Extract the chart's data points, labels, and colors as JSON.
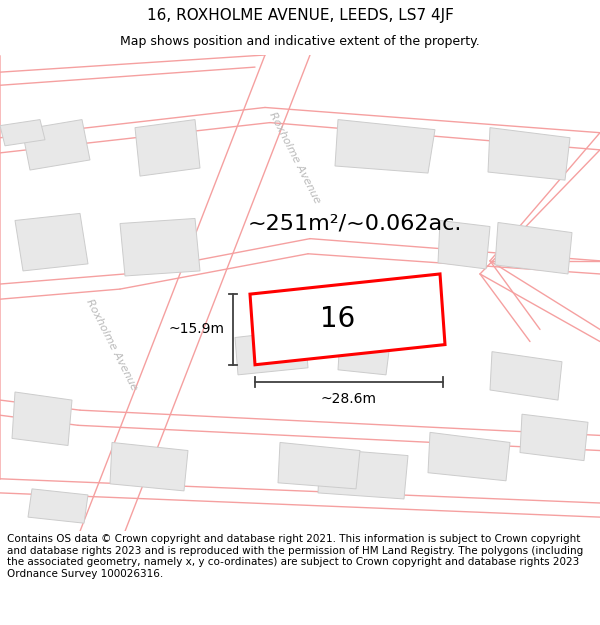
{
  "title": "16, ROXHOLME AVENUE, LEEDS, LS7 4JF",
  "subtitle": "Map shows position and indicative extent of the property.",
  "footer": "Contains OS data © Crown copyright and database right 2021. This information is subject to Crown copyright and database rights 2023 and is reproduced with the permission of HM Land Registry. The polygons (including the associated geometry, namely x, y co-ordinates) are subject to Crown copyright and database rights 2023 Ordnance Survey 100026316.",
  "area_label": "~251m²/~0.062ac.",
  "width_label": "~28.6m",
  "height_label": "~15.9m",
  "property_number": "16",
  "street_label_upper": "Roxholme Avenue",
  "street_label_lower": "Roxholme Avenue",
  "map_bg": "#ffffff",
  "road_line_color": "#f5a0a0",
  "building_face_color": "#e8e8e8",
  "building_edge_color": "#cccccc",
  "property_outline_color": "#ff0000",
  "dim_line_color": "#404040",
  "street_label_color": "#bbbbbb",
  "title_fontsize": 11,
  "subtitle_fontsize": 9,
  "footer_fontsize": 7.5,
  "area_fontsize": 16,
  "prop_num_fontsize": 20,
  "dim_fontsize": 10,
  "street_fontsize": 8
}
